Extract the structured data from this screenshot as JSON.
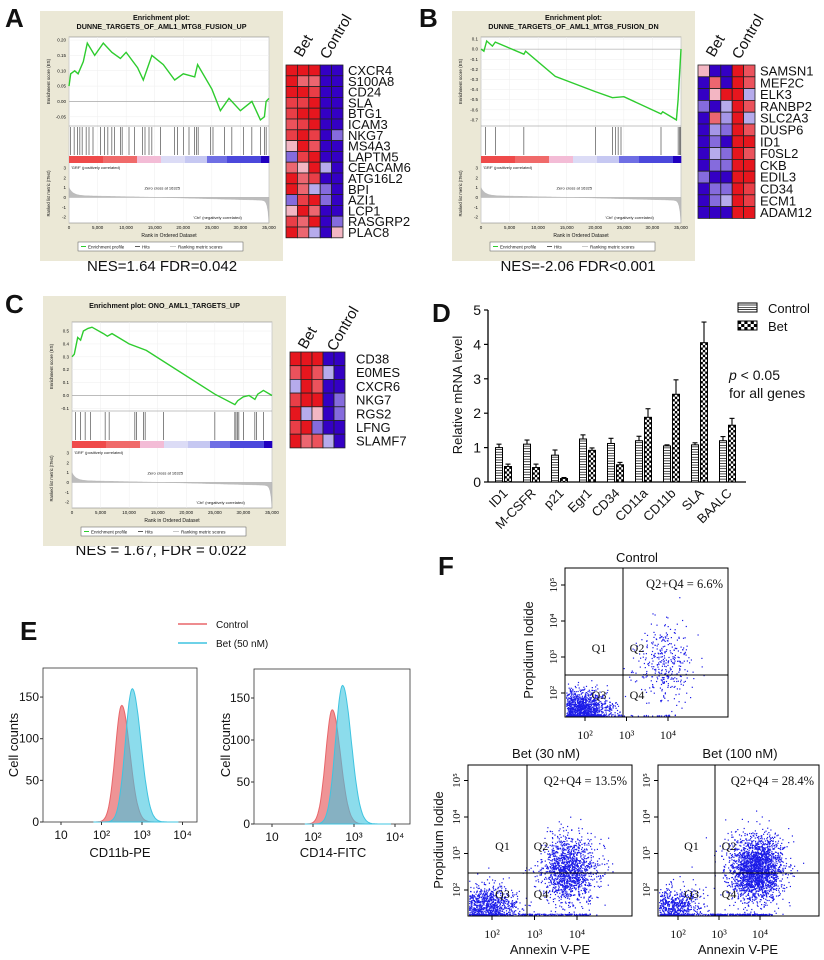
{
  "panels": {
    "A": "A",
    "B": "B",
    "C": "C",
    "D": "D",
    "E": "E",
    "F": "F"
  },
  "chart_data": [
    {
      "panel_label": "A",
      "type": "line",
      "title_lines": [
        "Enrichment plot:",
        "DUNNE_TARGETS_OF_AML1_MTG8_FUSION_UP"
      ],
      "ylabel": "Enrichment score (ES)",
      "metric_ylabel": "Ranked list metric (tTest)",
      "xlabel": "Rank in Ordered Dataset",
      "x_ticks": [
        0,
        5000,
        10000,
        15000,
        20000,
        25000,
        30000,
        35000
      ],
      "x_tick_labels": [
        "0",
        "5,000",
        "10,000",
        "15,000",
        "20,000",
        "25,000",
        "30,000",
        "35,000"
      ],
      "es_ylim": [
        -0.08,
        0.21
      ],
      "es_ticks": [
        0.2,
        0.15,
        0.1,
        0.05,
        0.0,
        -0.05
      ],
      "es_tick_labels": [
        "0.20",
        "0.15",
        "0.10",
        "0.05",
        "0.00",
        "-0.05"
      ],
      "es_curve": [
        [
          0,
          0.05
        ],
        [
          300,
          0.09
        ],
        [
          1000,
          0.1
        ],
        [
          1600,
          0.09
        ],
        [
          2500,
          0.13
        ],
        [
          3200,
          0.19
        ],
        [
          4500,
          0.15
        ],
        [
          6000,
          0.19
        ],
        [
          7500,
          0.16
        ],
        [
          9000,
          0.14
        ],
        [
          10000,
          0.16
        ],
        [
          12000,
          0.11
        ],
        [
          13000,
          0.07
        ],
        [
          14500,
          0.15
        ],
        [
          16500,
          0.12
        ],
        [
          18500,
          0.07
        ],
        [
          20000,
          0.09
        ],
        [
          22000,
          0.08
        ],
        [
          22500,
          0.12
        ],
        [
          25000,
          0.04
        ],
        [
          26500,
          -0.03
        ],
        [
          28000,
          0.01
        ],
        [
          30000,
          -0.03
        ],
        [
          32000,
          0.0
        ],
        [
          33500,
          -0.06
        ],
        [
          34200,
          -0.05
        ],
        [
          34500,
          0.0
        ],
        [
          35000,
          0.01
        ]
      ],
      "hits": [
        300,
        900,
        1500,
        1900,
        2300,
        3000,
        3500,
        4200,
        5500,
        6200,
        6800,
        7500,
        8000,
        9000,
        9300,
        10500,
        11500,
        12900,
        13300,
        14000,
        14500,
        16000,
        18500,
        19000,
        20000,
        21000,
        22000,
        22300,
        22600,
        24800,
        25200,
        27200,
        28500,
        30500,
        32000,
        33500,
        34200,
        34500
      ],
      "metric_ticks": [
        3,
        2,
        1,
        0,
        -1,
        -2
      ],
      "zero_cross_label": "Zero cross at 16325",
      "zero_cross": 16325,
      "pos_label": "'GRF' (positively correlated)",
      "neg_label": "'Ctrl' (negatively correlated)",
      "legend": [
        "Enrichment profile",
        "Hits",
        "Ranking metric scores"
      ],
      "stats": "NES=1.64  FDR=0.042",
      "heatmap": {
        "columns": [
          "Bet",
          "Control"
        ],
        "genes": [
          "CXCR4",
          "S100A8",
          "CD24",
          "SLA",
          "BTG1",
          "ICAM3",
          "NKG7",
          "MS4A3",
          "LAPTM5",
          "CEACAM6",
          "ATG16L2",
          "BPI",
          "AZI1",
          "LCP1",
          "RASGRP2",
          "PLAC8"
        ],
        "values": [
          [
            1,
            1,
            1,
            -1,
            -1
          ],
          [
            1,
            0.6,
            0.6,
            -1,
            -1
          ],
          [
            1,
            1,
            0.8,
            -1,
            -1
          ],
          [
            0.8,
            0.8,
            1,
            -1,
            -1
          ],
          [
            0.8,
            1,
            1,
            -1,
            -1
          ],
          [
            0.7,
            0.8,
            1,
            -1,
            -1
          ],
          [
            0.8,
            1,
            0.8,
            -1,
            -0.5
          ],
          [
            0.2,
            1,
            0.7,
            -1,
            -1
          ],
          [
            -0.5,
            0.8,
            1,
            -1,
            -1
          ],
          [
            0.6,
            0.2,
            1,
            -0.2,
            -1
          ],
          [
            1,
            0.6,
            0.8,
            -1,
            -1
          ],
          [
            1,
            0.6,
            -0.2,
            -0.5,
            -1
          ],
          [
            -0.5,
            0.8,
            1,
            -0.5,
            -1
          ],
          [
            0.2,
            1,
            0.6,
            -1,
            -1
          ],
          [
            0.8,
            0.6,
            1,
            -1,
            -0.5
          ],
          [
            1,
            0.6,
            -0.2,
            -1,
            0.2
          ]
        ]
      }
    },
    {
      "panel_label": "B",
      "type": "line",
      "title_lines": [
        "Enrichment plot:",
        "DUNNE_TARGETS_OF_AML1_MTG8_FUSION_DN"
      ],
      "ylabel": "Enrichment score (ES)",
      "metric_ylabel": "Ranked list metric (tTest)",
      "xlabel": "Rank in Ordered Dataset",
      "x_ticks": [
        0,
        5000,
        10000,
        15000,
        20000,
        25000,
        30000,
        35000
      ],
      "x_tick_labels": [
        "0",
        "5,000",
        "10,000",
        "15,000",
        "20,000",
        "25,000",
        "30,000",
        "35,000"
      ],
      "es_ylim": [
        -0.76,
        0.12
      ],
      "es_ticks": [
        0.1,
        0.0,
        -0.1,
        -0.2,
        -0.3,
        -0.4,
        -0.5,
        -0.6,
        -0.7
      ],
      "es_tick_labels": [
        "0.1",
        "0.0",
        "-0.1",
        "-0.2",
        "-0.3",
        "-0.4",
        "-0.5",
        "-0.6",
        "-0.7"
      ],
      "es_curve": [
        [
          0,
          0.0
        ],
        [
          500,
          -0.02
        ],
        [
          1000,
          0.08
        ],
        [
          2000,
          0.03
        ],
        [
          2500,
          0.07
        ],
        [
          7500,
          -0.05
        ],
        [
          7800,
          -0.02
        ],
        [
          13000,
          -0.27
        ],
        [
          20000,
          -0.42
        ],
        [
          23000,
          -0.48
        ],
        [
          25000,
          -0.47
        ],
        [
          31500,
          -0.64
        ],
        [
          31800,
          -0.62
        ],
        [
          34200,
          -0.7
        ],
        [
          34500,
          -0.5
        ],
        [
          35000,
          0.0
        ]
      ],
      "hits": [
        800,
        2500,
        7500,
        20000,
        23000,
        23500,
        24000,
        24500,
        31500,
        34500,
        34700,
        34900
      ],
      "metric_ticks": [
        3,
        2,
        1,
        0,
        -1,
        -2
      ],
      "zero_cross_label": "Zero cross at 16325",
      "zero_cross": 16325,
      "pos_label": "'GRF' (positively correlated)",
      "neg_label": "'Ctrl' (negatively correlated)",
      "legend": [
        "Enrichment profile",
        "Hits",
        "Ranking metric scores"
      ],
      "stats": "NES=-2.06  FDR<0.001",
      "heatmap": {
        "columns": [
          "Bet",
          "Control"
        ],
        "genes": [
          "SAMSN1",
          "MEF2C",
          "ELK3",
          "RANBP2",
          "SLC2A3",
          "DUSP6",
          "ID1",
          "F0SL2",
          "CKB",
          "EDIL3",
          "CD34",
          "ECM1",
          "ADAM12"
        ],
        "values": [
          [
            0.2,
            -1,
            -1,
            1,
            0.7
          ],
          [
            -1,
            0.6,
            -1,
            1,
            0.7
          ],
          [
            -1,
            0.2,
            1,
            1,
            -0.2
          ],
          [
            -0.5,
            -1,
            -0.2,
            1,
            0.7
          ],
          [
            -1,
            0.6,
            -0.3,
            1,
            -0.2
          ],
          [
            -1,
            -0.3,
            -0.5,
            1,
            0.7
          ],
          [
            -1,
            -0.5,
            -1,
            1,
            1
          ],
          [
            -1,
            -0.2,
            -0.5,
            1,
            0.7
          ],
          [
            -1,
            -0.5,
            -0.5,
            1,
            1
          ],
          [
            -0.5,
            -1,
            -1,
            1,
            1
          ],
          [
            -1,
            -0.5,
            -0.5,
            1,
            0.8
          ],
          [
            -1,
            -0.5,
            -0.2,
            1,
            0.8
          ],
          [
            -1,
            -1,
            -1,
            1,
            1
          ]
        ]
      }
    },
    {
      "panel_label": "C",
      "type": "line",
      "title_lines": [
        "Enrichment plot: ONO_AML1_TARGETS_UP"
      ],
      "ylabel": "Enrichment score (ES)",
      "metric_ylabel": "Ranked list metric (tTest)",
      "xlabel": "Rank in Ordered Dataset",
      "x_ticks": [
        0,
        5000,
        10000,
        15000,
        20000,
        25000,
        30000,
        35000
      ],
      "x_tick_labels": [
        "0",
        "5,000",
        "10,000",
        "15,000",
        "20,000",
        "25,000",
        "30,000",
        "35,000"
      ],
      "es_ylim": [
        -0.12,
        0.57
      ],
      "es_ticks": [
        0.5,
        0.4,
        0.3,
        0.2,
        0.1,
        0.0,
        -0.1
      ],
      "es_tick_labels": [
        "0.5",
        "0.4",
        "0.3",
        "0.2",
        "0.1",
        "0.0",
        "-0.1"
      ],
      "es_curve": [
        [
          0,
          0.3
        ],
        [
          400,
          0.32
        ],
        [
          1000,
          0.45
        ],
        [
          1500,
          0.43
        ],
        [
          2000,
          0.5
        ],
        [
          2800,
          0.52
        ],
        [
          3500,
          0.53
        ],
        [
          5500,
          0.48
        ],
        [
          6200,
          0.46
        ],
        [
          7000,
          0.48
        ],
        [
          10000,
          0.4
        ],
        [
          13000,
          0.35
        ],
        [
          25000,
          0.01
        ],
        [
          28500,
          -0.07
        ],
        [
          29000,
          -0.04
        ],
        [
          30000,
          -0.01
        ],
        [
          31000,
          0.0
        ],
        [
          32000,
          -0.03
        ],
        [
          32500,
          0.01
        ],
        [
          33500,
          0.04
        ],
        [
          35000,
          0.0
        ]
      ],
      "hits": [
        600,
        1500,
        2300,
        3200,
        5800,
        6500,
        11000,
        11300,
        12500,
        12800,
        16000,
        25000,
        28500,
        28700,
        29000,
        29200,
        30000,
        32000,
        32300,
        33500
      ],
      "metric_ticks": [
        3,
        2,
        1,
        0,
        -1,
        -2
      ],
      "zero_cross_label": "Zero cross at 16325",
      "zero_cross": 16325,
      "pos_label": "'GRF' (positively correlated)",
      "neg_label": "'Ctrl' (negatively correlated)",
      "legend": [
        "Enrichment profile",
        "Hits",
        "Ranking metric scores"
      ],
      "stats": "NES = 1.67, FDR = 0.022",
      "heatmap": {
        "columns": [
          "Bet",
          "Control"
        ],
        "genes": [
          "CD38",
          "E0MES",
          "CXCR6",
          "NKG7",
          "RGS2",
          "LFNG",
          "SLAMF7"
        ],
        "values": [
          [
            1,
            1,
            1,
            -1,
            -1
          ],
          [
            0.7,
            1,
            0.7,
            -0.2,
            -1
          ],
          [
            -0.2,
            1,
            0.7,
            -1,
            -1
          ],
          [
            0.8,
            1,
            1,
            -1,
            -0.5
          ],
          [
            1,
            -0.2,
            0.2,
            -1,
            -0.5
          ],
          [
            0.8,
            1,
            -0.5,
            -1,
            -1
          ],
          [
            1,
            0.6,
            0.7,
            -0.2,
            -1
          ]
        ]
      }
    },
    {
      "panel_label": "D",
      "type": "bar",
      "ylabel": "Relative mRNA level",
      "ylim": [
        0,
        5
      ],
      "y_ticks": [
        0,
        1,
        2,
        3,
        4,
        5
      ],
      "categories": [
        "ID1",
        "M-CSFR",
        "p21",
        "Egr1",
        "CD34",
        "CD11a",
        "CD11b",
        "SLA",
        "BAALC"
      ],
      "series": [
        {
          "name": "Control",
          "values": [
            1.0,
            1.1,
            0.78,
            1.25,
            1.12,
            1.2,
            1.05,
            1.08,
            1.2
          ],
          "errors": [
            0.1,
            0.12,
            0.15,
            0.12,
            0.15,
            0.13,
            0.03,
            0.06,
            0.12
          ]
        },
        {
          "name": "Bet",
          "values": [
            0.45,
            0.42,
            0.1,
            0.92,
            0.5,
            1.88,
            2.55,
            4.05,
            1.65
          ],
          "errors": [
            0.07,
            0.1,
            0.03,
            0.07,
            0.07,
            0.25,
            0.42,
            0.6,
            0.2
          ]
        }
      ],
      "annotation_p": "p",
      "annotation_rest": " < 0.05",
      "annotation_line2": "for all genes",
      "legend_placement": "top-right"
    },
    {
      "panel_label": "E",
      "type": "area",
      "legend": [
        "Control",
        "Bet (50 nM)"
      ],
      "colors": {
        "Control": "#e8666a",
        "Bet (50 nM)": "#3fc4e0"
      },
      "plots": [
        {
          "xlabel": "CD11b-PE",
          "ylabel": "Cell counts",
          "x_tick_labels": [
            "10",
            "10²",
            "10³",
            "10⁴"
          ],
          "y_ticks": [
            0,
            50,
            100,
            150
          ],
          "ylim": [
            0,
            185
          ],
          "series": [
            {
              "name": "Control",
              "peak_x": 316,
              "peak_count": 140
            },
            {
              "name": "Bet (50 nM)",
              "peak_x": 575,
              "peak_count": 160
            }
          ]
        },
        {
          "xlabel": "CD14-FITC",
          "ylabel": "Cell counts",
          "x_tick_labels": [
            "10",
            "10²",
            "10³",
            "10⁴"
          ],
          "y_ticks": [
            0,
            50,
            100,
            150
          ],
          "ylim": [
            0,
            185
          ],
          "series": [
            {
              "name": "Control",
              "peak_x": 295,
              "peak_count": 136
            },
            {
              "name": "Bet (50 nM)",
              "peak_x": 525,
              "peak_count": 165
            }
          ]
        }
      ]
    },
    {
      "panel_label": "F",
      "type": "scatter",
      "xlabel": "Annexin V-PE",
      "ylabel": "Propidium Iodide",
      "x_tick_labels": [
        "10²",
        "10³",
        "10⁴"
      ],
      "y_tick_labels": [
        "10²",
        "10³",
        "10⁴",
        "10⁵"
      ],
      "quadrants": [
        "Q1",
        "Q2",
        "Q3",
        "Q4"
      ],
      "plots": [
        {
          "title": "Control",
          "annotation": "Q2+Q4 = 6.6%",
          "q2_q4_percent": 6.6
        },
        {
          "title": "Bet (30 nM)",
          "annotation": "Q2+Q4 = 13.5%",
          "q2_q4_percent": 13.5
        },
        {
          "title": "Bet (100 nM)",
          "annotation": "Q2+Q4 = 28.4%",
          "q2_q4_percent": 28.4
        }
      ]
    }
  ]
}
